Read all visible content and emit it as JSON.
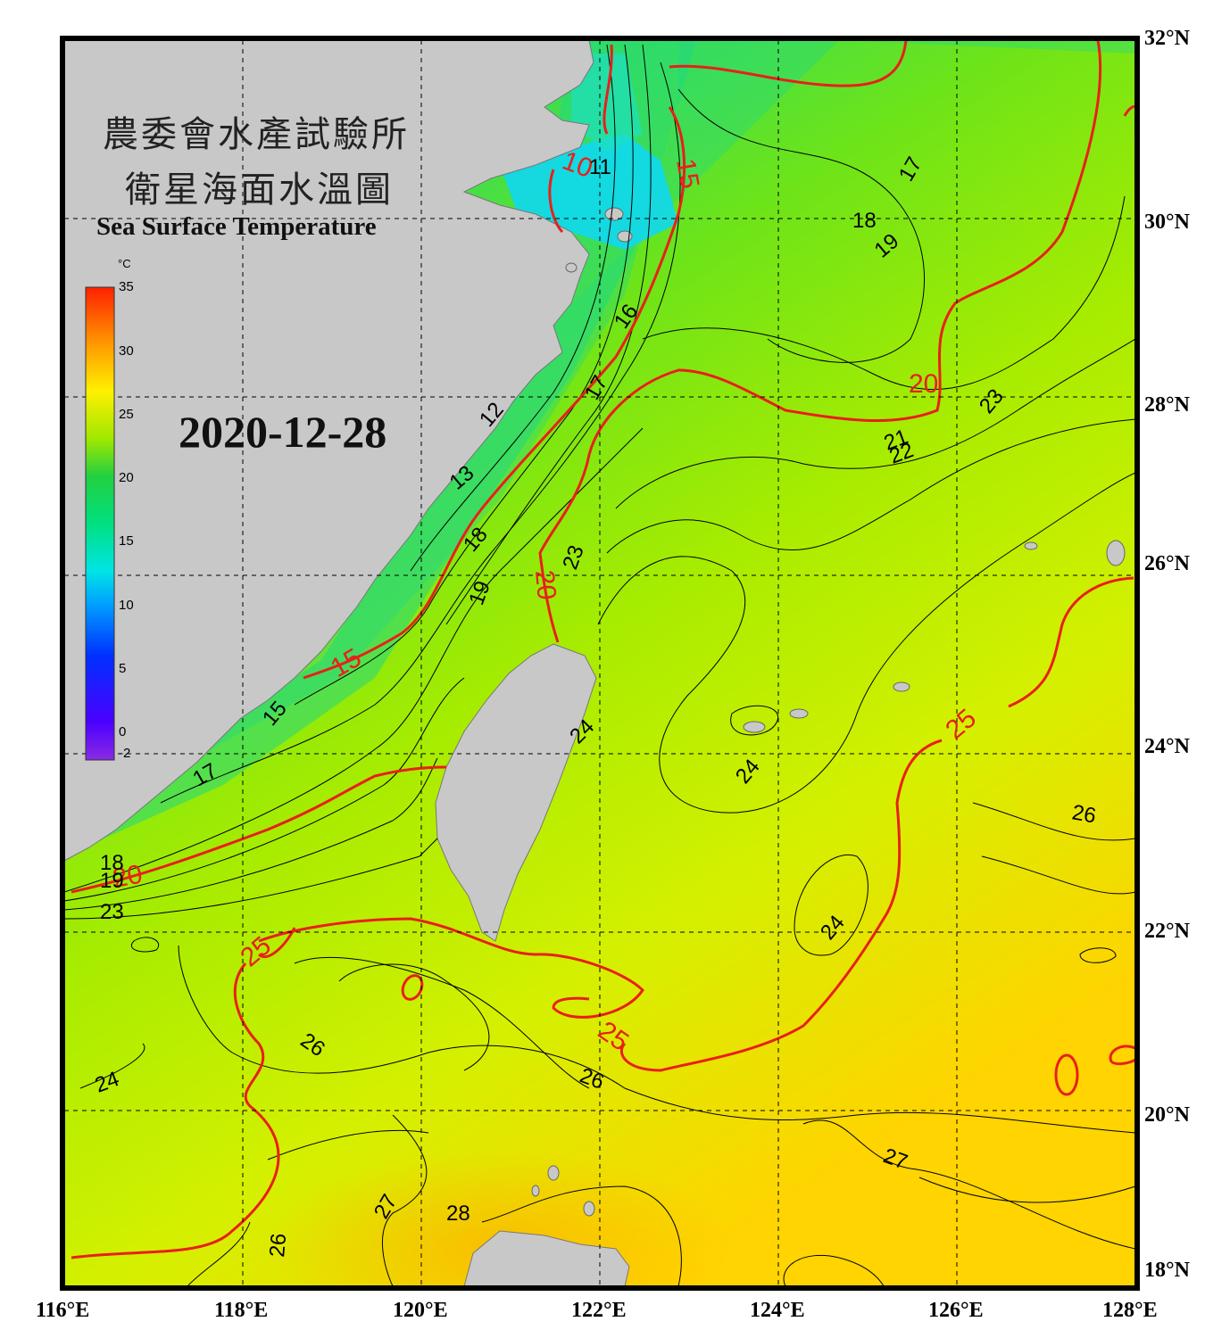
{
  "title": {
    "line1": "農委會水產試驗所",
    "line2": "衛星海面水溫圖",
    "english": "Sea Surface Temperature"
  },
  "date": "2020-12-28",
  "colorbar": {
    "unit": "°C",
    "ticks": [
      "35",
      "30",
      "25",
      "20",
      "15",
      "10",
      "5",
      "0",
      "-2"
    ],
    "range": [
      -2,
      35
    ]
  },
  "axes": {
    "longitude_labels": [
      "116°E",
      "118°E",
      "120°E",
      "122°E",
      "124°E",
      "126°E",
      "128°E"
    ],
    "latitude_labels": [
      "32°N",
      "30°N",
      "28°N",
      "26°N",
      "24°N",
      "22°N",
      "20°N",
      "18°N"
    ],
    "lon_range": [
      116,
      128
    ],
    "lat_range": [
      18,
      32
    ],
    "grid": "dashed"
  },
  "contours": {
    "major_color": "#e8201a",
    "minor_color": "#000000",
    "major_labels": [
      "10",
      "15",
      "15",
      "20",
      "20",
      "20",
      "25",
      "25",
      "25",
      "0",
      "0"
    ],
    "minor_labels": [
      "11",
      "12",
      "13",
      "17",
      "16",
      "17",
      "17",
      "18",
      "18",
      "19",
      "19",
      "21",
      "22",
      "23",
      "23",
      "24",
      "24",
      "24",
      "24",
      "26",
      "26",
      "26",
      "26",
      "27",
      "27",
      "28",
      "18",
      "19",
      "23",
      "15"
    ]
  },
  "colors": {
    "land": "#c8c8c8",
    "cold_water": "#12d4f0",
    "mid_water": "#2ad86a",
    "warm_water": "#c8f000",
    "hot_water": "#ffd000"
  }
}
